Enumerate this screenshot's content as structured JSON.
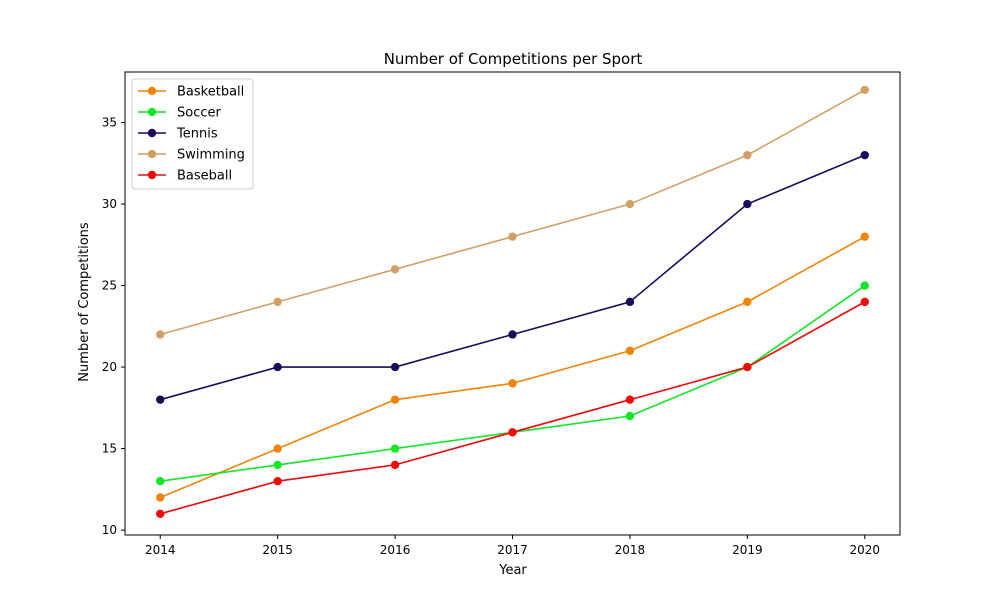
{
  "chart_data": {
    "type": "line",
    "title": "Number of Competitions per Sport",
    "xlabel": "Year",
    "ylabel": "Number of Competitions",
    "x": [
      2014,
      2015,
      2016,
      2017,
      2018,
      2019,
      2020
    ],
    "xlim": [
      2013.7,
      2020.3
    ],
    "ylim": [
      9.7,
      38.1
    ],
    "yticks": [
      10,
      15,
      20,
      25,
      30,
      35
    ],
    "grid": false,
    "legend": "top-left",
    "series": [
      {
        "name": "Basketball",
        "color": "#f0850a",
        "values": [
          12,
          15,
          18,
          19,
          21,
          24,
          28
        ]
      },
      {
        "name": "Soccer",
        "color": "#14e628",
        "values": [
          13,
          14,
          15,
          16,
          17,
          20,
          25
        ]
      },
      {
        "name": "Tennis",
        "color": "#1e0a5a",
        "values": [
          18,
          20,
          20,
          22,
          24,
          30,
          33
        ]
      },
      {
        "name": "Swimming",
        "color": "#d2a064",
        "values": [
          22,
          24,
          26,
          28,
          30,
          33,
          37
        ]
      },
      {
        "name": "Baseball",
        "color": "#f00a0a",
        "values": [
          11,
          13,
          14,
          16,
          18,
          20,
          24
        ]
      }
    ]
  }
}
